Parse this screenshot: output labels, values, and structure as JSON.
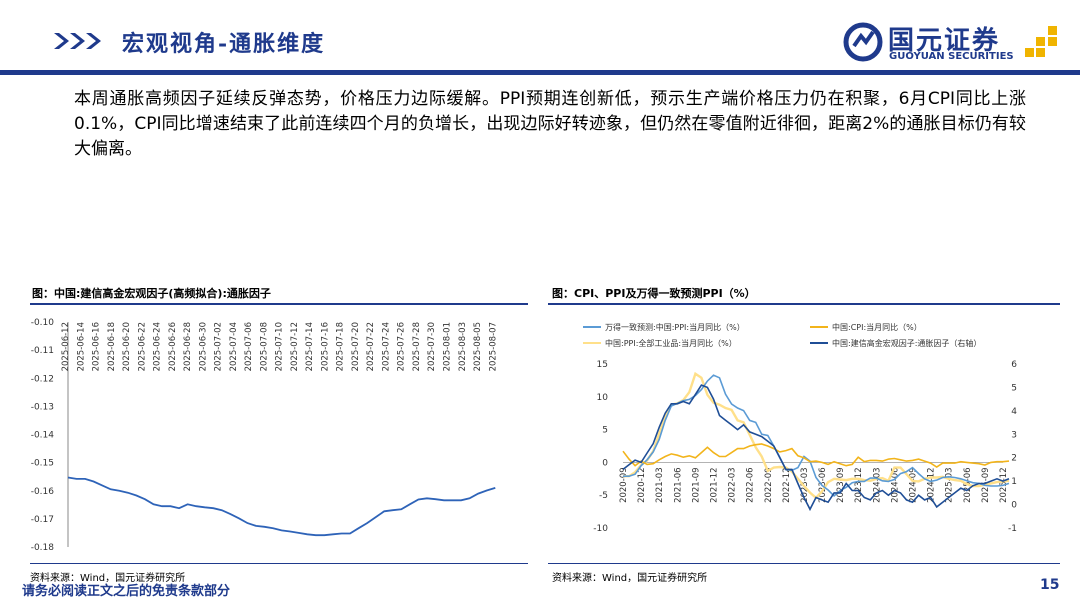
{
  "header": {
    "title": "宏观视角-通胀维度",
    "logo_cn": "国元证券",
    "logo_en": "GUOYUAN SECURITIES"
  },
  "body_text": "本周通胀高频因子延续反弹态势，价格压力边际缓解。PPI预期连创新低，预示生产端价格压力仍在积聚，6月CPI同比上涨0.1%，CPI同比增速结束了此前连续四个月的负增长，出现边际好转迹象，但仍然在零值附近徘徊，距离2%的通胀目标仍有较大偏离。",
  "chart_left": {
    "title": "图：中国:建信高金宏观因子(高频拟合):通胀因子",
    "source": "资料来源：Wind，国元证券研究所"
  },
  "chart_right": {
    "title": "图：CPI、PPI及万得一致预测PPI（%）",
    "source": "资料来源：Wind，国元证券研究所"
  },
  "footer": {
    "disclaimer": "请务必阅读正文之后的免责条款部分",
    "page": "15"
  },
  "chart_data": [
    {
      "type": "line",
      "title": "中国:建信高金宏观因子(高频拟合):通胀因子",
      "x_tick_labels": [
        "2025-06-12",
        "2025-06-14",
        "2025-06-16",
        "2025-06-18",
        "2025-06-20",
        "2025-06-22",
        "2025-06-24",
        "2025-06-26",
        "2025-06-28",
        "2025-06-30",
        "2025-07-02",
        "2025-07-04",
        "2025-07-06",
        "2025-07-08",
        "2025-07-10",
        "2025-07-12",
        "2025-07-14",
        "2025-07-16",
        "2025-07-18",
        "2025-07-20",
        "2025-07-22",
        "2025-07-24",
        "2025-07-26",
        "2025-07-28",
        "2025-07-30",
        "2025-08-01",
        "2025-08-03",
        "2025-08-05",
        "2025-08-07"
      ],
      "y_tick_labels": [
        "-0.10",
        "-0.11",
        "-0.12",
        "-0.13",
        "-0.14",
        "-0.15",
        "-0.16",
        "-0.17",
        "-0.18"
      ],
      "ylim": [
        -0.18,
        -0.1
      ],
      "color": "#2e63b8",
      "values": [
        -0.1553,
        -0.1558,
        -0.1558,
        -0.1567,
        -0.1581,
        -0.1595,
        -0.16,
        -0.1607,
        -0.1617,
        -0.163,
        -0.1648,
        -0.1655,
        -0.1655,
        -0.1662,
        -0.1648,
        -0.1655,
        -0.1659,
        -0.1662,
        -0.1669,
        -0.1683,
        -0.1698,
        -0.1715,
        -0.1725,
        -0.1728,
        -0.1733,
        -0.1741,
        -0.1745,
        -0.175,
        -0.1755,
        -0.1758,
        -0.1758,
        -0.1755,
        -0.1752,
        -0.1752,
        -0.1733,
        -0.1715,
        -0.1694,
        -0.1673,
        -0.1669,
        -0.1666,
        -0.1648,
        -0.1631,
        -0.1627,
        -0.163,
        -0.1634,
        -0.1634,
        -0.1634,
        -0.1627,
        -0.161,
        -0.1599,
        -0.159
      ]
    },
    {
      "type": "line",
      "title": "CPI、PPI及万得一致预测PPI（%）",
      "x_tick_labels": [
        "2020-09",
        "2020-12",
        "2021-03",
        "2021-06",
        "2021-09",
        "2021-12",
        "2022-03",
        "2022-06",
        "2022-09",
        "2022-12",
        "2023-03",
        "2023-06",
        "2023-09",
        "2023-12",
        "2024-03",
        "2024-06",
        "2024-09",
        "2024-12",
        "2025-03",
        "2025-06",
        "2025-09",
        "2025-12"
      ],
      "y_left_ticks": [
        "15",
        "10",
        "5",
        "0",
        "-5",
        "-10"
      ],
      "y_right_ticks": [
        "6",
        "5",
        "4",
        "3",
        "2",
        "1",
        "0",
        "-1"
      ],
      "ylim_left": [
        -10,
        15
      ],
      "ylim_right": [
        -1,
        6
      ],
      "x_start": "2020-09",
      "series": [
        {
          "name": "万得一致预测:中国:PPI:当月同比（%）",
          "color": "#5b9bd5",
          "axis": "left",
          "values": [
            -2.1,
            -2.1,
            -1.8,
            -0.5,
            0.4,
            1.6,
            3.5,
            6.4,
            8.6,
            9.0,
            9.4,
            9.6,
            10.2,
            11.1,
            12.4,
            13.3,
            12.9,
            10.4,
            8.9,
            8.3,
            7.9,
            6.4,
            6.1,
            4.3,
            4.1,
            2.5,
            0.8,
            -1.1,
            -1.2,
            -0.8,
            0.9,
            0.2,
            -2.3,
            -3.5,
            -4.2,
            -5.1,
            -4.3,
            -3.8,
            -3.1,
            -2.9,
            -2.9,
            -2.4,
            -2.4,
            -2.8,
            -2.9,
            -2.6,
            -1.7,
            -1.4,
            -0.8,
            -1.7,
            -2.5,
            -2.9,
            -2.7,
            -2.3,
            -2.2,
            -2.3,
            -2.5,
            -2.8,
            -3.1,
            -3.2,
            -3.5,
            -3.6,
            -3.6,
            -3.5,
            -3.2
          ]
        },
        {
          "name": "中国:CPI:当月同比（%）",
          "color": "#f2b41b",
          "axis": "left",
          "values": [
            1.7,
            0.5,
            -0.5,
            0.2,
            -0.3,
            -0.2,
            0.4,
            0.9,
            1.3,
            1.1,
            0.8,
            1.0,
            0.7,
            1.5,
            2.3,
            1.5,
            0.9,
            0.9,
            1.5,
            2.1,
            2.1,
            2.5,
            2.7,
            2.8,
            2.5,
            2.1,
            1.6,
            1.8,
            2.1,
            1.0,
            0.7,
            0.1,
            0.2,
            0.0,
            -0.3,
            0.1,
            -0.2,
            -0.5,
            -0.3,
            0.8,
            0.1,
            0.3,
            0.3,
            0.2,
            0.5,
            0.6,
            0.4,
            0.2,
            0.3,
            0.5,
            0.2,
            -0.1,
            -0.7,
            -0.1,
            -0.1,
            -0.1,
            0.1,
            0.0,
            -0.1,
            -0.2,
            -0.4,
            0.0,
            0.1,
            0.1,
            0.2
          ]
        },
        {
          "name": "中国:PPI:全部工业品:当月同比（%）",
          "color": "#ffe08a",
          "axis": "left",
          "values": [
            -2.1,
            -2.1,
            -1.5,
            -0.4,
            0.3,
            1.7,
            4.4,
            6.8,
            8.8,
            9.0,
            9.5,
            10.7,
            13.5,
            12.9,
            10.3,
            9.1,
            8.8,
            8.3,
            8.0,
            6.4,
            6.1,
            4.2,
            2.3,
            0.9,
            -1.3,
            -0.8,
            -0.7,
            -0.8,
            -1.4,
            -2.5,
            -3.6,
            -4.6,
            -5.4,
            -4.4,
            -3.0,
            -2.5,
            -2.6,
            -2.7,
            -2.5,
            -2.5,
            -2.7,
            -2.8,
            -2.5,
            -2.4,
            -2.8,
            -0.8,
            -0.8,
            -1.8,
            -2.8,
            -2.9,
            -2.5,
            -2.3,
            -2.3,
            -2.2,
            -2.5,
            -2.7,
            -2.8,
            -3.3,
            -3.6,
            -3.6,
            -3.4,
            -3.2,
            -3.0,
            -2.9,
            -2.8
          ]
        },
        {
          "name": "中国:建信高金宏观因子:通胀因子（右轴）",
          "color": "#1f4e96",
          "axis": "right",
          "values": [
            1.5,
            1.7,
            1.9,
            1.8,
            2.2,
            2.6,
            3.3,
            3.9,
            4.3,
            4.3,
            4.4,
            4.3,
            4.7,
            5.1,
            5.0,
            4.5,
            3.8,
            3.6,
            3.4,
            3.2,
            3.4,
            3.1,
            3.0,
            2.9,
            2.7,
            2.5,
            2.0,
            1.5,
            1.5,
            0.9,
            0.3,
            -0.2,
            0.3,
            0.2,
            0.1,
            0.5,
            0.5,
            0.9,
            0.6,
            0.6,
            0.3,
            0.2,
            0.5,
            0.6,
            0.4,
            0.6,
            0.5,
            0.2,
            0.1,
            0.4,
            0.2,
            0.3,
            -0.1,
            0.1,
            0.3,
            0.5,
            0.7,
            0.6,
            0.8,
            0.9,
            0.9,
            1.0,
            1.1,
            1.0,
            1.1
          ]
        }
      ]
    }
  ]
}
